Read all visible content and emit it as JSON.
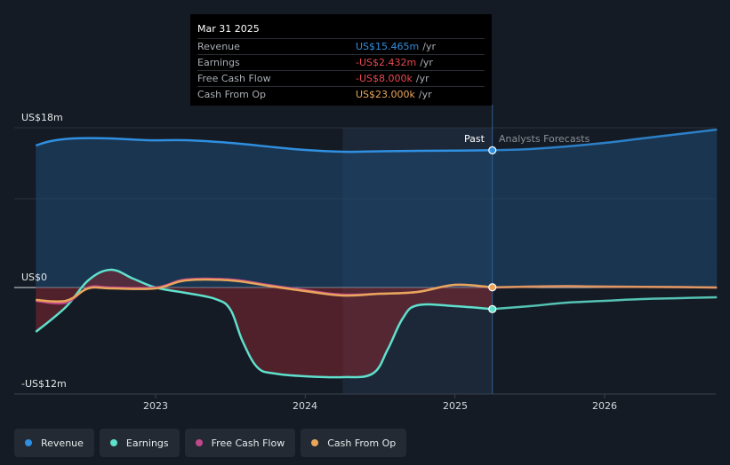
{
  "chart_data": {
    "type": "line",
    "y_labels": [
      "US$18m",
      "US$0",
      "-US$12m"
    ],
    "x_tick_labels": [
      "2023",
      "2024",
      "2025",
      "2026"
    ],
    "ylim": [
      -12,
      18
    ],
    "periods": {
      "past_label": "Past",
      "forecast_label": "Analysts Forecasts"
    },
    "x_start": 2022.2,
    "x_end": 2026.75,
    "series": [
      {
        "name": "Revenue",
        "color": "#2f8fe0",
        "points": [
          [
            2022.2,
            16.0
          ],
          [
            2022.3,
            16.5
          ],
          [
            2022.45,
            16.8
          ],
          [
            2022.7,
            16.8
          ],
          [
            2022.95,
            16.6
          ],
          [
            2023.2,
            16.6
          ],
          [
            2023.5,
            16.3
          ],
          [
            2023.8,
            15.8
          ],
          [
            2024.0,
            15.5
          ],
          [
            2024.25,
            15.3
          ],
          [
            2024.5,
            15.35
          ],
          [
            2024.75,
            15.4
          ],
          [
            2025.0,
            15.43
          ],
          [
            2025.25,
            15.465
          ],
          [
            2025.5,
            15.6
          ],
          [
            2025.75,
            15.9
          ],
          [
            2026.0,
            16.3
          ],
          [
            2026.25,
            16.8
          ],
          [
            2026.5,
            17.3
          ],
          [
            2026.75,
            17.8
          ]
        ],
        "forecast_from": 2025.25
      },
      {
        "name": "Earnings",
        "color": "#5fe0cc",
        "points": [
          [
            2022.2,
            -5.0
          ],
          [
            2022.4,
            -2.2
          ],
          [
            2022.55,
            0.8
          ],
          [
            2022.7,
            2.0
          ],
          [
            2022.85,
            1.0
          ],
          [
            2023.0,
            0.0
          ],
          [
            2023.2,
            -0.6
          ],
          [
            2023.4,
            -1.3
          ],
          [
            2023.5,
            -2.5
          ],
          [
            2023.58,
            -6.0
          ],
          [
            2023.68,
            -9.0
          ],
          [
            2023.8,
            -9.7
          ],
          [
            2024.0,
            -10.0
          ],
          [
            2024.25,
            -10.1
          ],
          [
            2024.45,
            -9.7
          ],
          [
            2024.55,
            -7.0
          ],
          [
            2024.65,
            -3.5
          ],
          [
            2024.75,
            -2.0
          ],
          [
            2025.0,
            -2.1
          ],
          [
            2025.25,
            -2.432
          ],
          [
            2025.5,
            -2.1
          ],
          [
            2025.75,
            -1.7
          ],
          [
            2026.0,
            -1.5
          ],
          [
            2026.25,
            -1.3
          ],
          [
            2026.5,
            -1.2
          ],
          [
            2026.75,
            -1.1
          ]
        ],
        "forecast_from": 2025.25
      },
      {
        "name": "Free Cash Flow",
        "color": "#c2478a",
        "points": [
          [
            2022.2,
            -1.5
          ],
          [
            2022.4,
            -1.7
          ],
          [
            2022.55,
            0.0
          ],
          [
            2022.7,
            0.0
          ],
          [
            2023.0,
            0.0
          ],
          [
            2023.2,
            0.9
          ],
          [
            2023.5,
            0.9
          ],
          [
            2023.75,
            0.3
          ],
          [
            2024.0,
            -0.3
          ],
          [
            2024.25,
            -0.8
          ],
          [
            2024.5,
            -0.7
          ],
          [
            2024.75,
            -0.5
          ],
          [
            2025.0,
            0.3
          ],
          [
            2025.25,
            -0.008
          ],
          [
            2025.5,
            0.1
          ],
          [
            2025.75,
            0.15
          ],
          [
            2026.0,
            0.1
          ],
          [
            2026.5,
            0.05
          ],
          [
            2026.75,
            0.0
          ]
        ],
        "forecast_from": 2025.25
      },
      {
        "name": "Cash From Op",
        "color": "#e8a65a",
        "points": [
          [
            2022.2,
            -1.4
          ],
          [
            2022.4,
            -1.5
          ],
          [
            2022.55,
            -0.1
          ],
          [
            2022.7,
            -0.1
          ],
          [
            2023.0,
            -0.1
          ],
          [
            2023.2,
            0.8
          ],
          [
            2023.5,
            0.8
          ],
          [
            2023.75,
            0.2
          ],
          [
            2024.0,
            -0.4
          ],
          [
            2024.25,
            -0.9
          ],
          [
            2024.5,
            -0.7
          ],
          [
            2024.75,
            -0.5
          ],
          [
            2025.0,
            0.3
          ],
          [
            2025.25,
            0.023
          ],
          [
            2025.5,
            0.1
          ],
          [
            2025.75,
            0.15
          ],
          [
            2026.0,
            0.1
          ],
          [
            2026.5,
            0.05
          ],
          [
            2026.75,
            0.0
          ]
        ],
        "forecast_from": 2025.25
      }
    ],
    "tooltip": {
      "date": "Mar 31 2025",
      "rows": [
        {
          "label": "Revenue",
          "value": "US$15.465m",
          "unit": "/yr",
          "color": "#2f8fe0"
        },
        {
          "label": "Earnings",
          "value": "-US$2.432m",
          "unit": "/yr",
          "color": "#e8484f"
        },
        {
          "label": "Free Cash Flow",
          "value": "-US$8.000k",
          "unit": "/yr",
          "color": "#e8484f"
        },
        {
          "label": "Cash From Op",
          "value": "US$23.000k",
          "unit": "/yr",
          "color": "#e8a65a"
        }
      ]
    },
    "highlight_x": 2025.25,
    "legend": [
      {
        "label": "Revenue",
        "color": "#2f8fe0"
      },
      {
        "label": "Earnings",
        "color": "#5fe0cc"
      },
      {
        "label": "Free Cash Flow",
        "color": "#c2478a"
      },
      {
        "label": "Cash From Op",
        "color": "#e8a65a"
      }
    ]
  }
}
